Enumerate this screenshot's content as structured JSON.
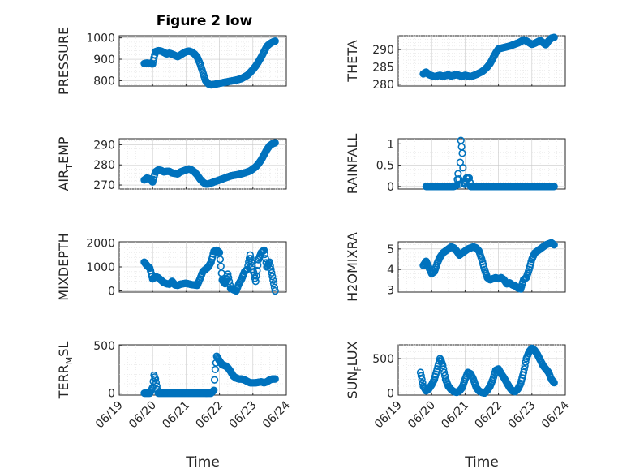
{
  "figure": {
    "title": "Figure 2 low",
    "xlabel": "Time",
    "marker_color": "#0072BD",
    "date_ticks": [
      "06/19",
      "06/20",
      "06/21",
      "06/22",
      "06/23",
      "06/24"
    ]
  },
  "chart_data": [
    {
      "type": "scatter",
      "ylabel": "PRESSURE",
      "ylim": [
        775,
        1010
      ],
      "yticks": [
        800,
        900,
        1000
      ],
      "x": [
        "06/19 18:00",
        "06/19 20:00",
        "06/19 22:00",
        "06/20 00:00",
        "06/20 02:00",
        "06/20 04:00",
        "06/20 06:00",
        "06/20 08:00",
        "06/20 10:00",
        "06/20 12:00",
        "06/20 14:00",
        "06/20 16:00",
        "06/20 18:00",
        "06/20 20:00",
        "06/20 22:00",
        "06/21 00:00",
        "06/21 02:00",
        "06/21 04:00",
        "06/21 06:00",
        "06/21 08:00",
        "06/21 10:00",
        "06/21 12:00",
        "06/21 14:00",
        "06/21 16:00",
        "06/21 18:00",
        "06/21 20:00",
        "06/21 22:00",
        "06/22 00:00",
        "06/22 02:00",
        "06/22 04:00",
        "06/22 06:00",
        "06/22 08:00",
        "06/22 10:00",
        "06/22 12:00",
        "06/22 14:00",
        "06/22 16:00",
        "06/22 18:00",
        "06/22 20:00",
        "06/22 22:00",
        "06/23 00:00",
        "06/23 02:00",
        "06/23 04:00",
        "06/23 06:00",
        "06/23 08:00",
        "06/23 10:00",
        "06/23 12:00",
        "06/23 14:00",
        "06/23 16:00"
      ],
      "values": [
        880,
        882,
        880,
        878,
        935,
        940,
        938,
        932,
        925,
        928,
        924,
        918,
        912,
        920,
        928,
        935,
        938,
        934,
        925,
        910,
        880,
        840,
        800,
        785,
        780,
        782,
        785,
        788,
        790,
        793,
        795,
        798,
        800,
        803,
        806,
        810,
        818,
        825,
        838,
        852,
        868,
        888,
        910,
        935,
        960,
        972,
        980,
        985
      ]
    },
    {
      "type": "scatter",
      "ylabel": "THETA",
      "ylim": [
        279.5,
        294
      ],
      "yticks": [
        280,
        285,
        290
      ],
      "x": [
        "06/19 18:00",
        "06/19 20:00",
        "06/19 22:00",
        "06/20 00:00",
        "06/20 02:00",
        "06/20 04:00",
        "06/20 06:00",
        "06/20 08:00",
        "06/20 10:00",
        "06/20 12:00",
        "06/20 14:00",
        "06/20 16:00",
        "06/20 18:00",
        "06/20 20:00",
        "06/20 22:00",
        "06/21 00:00",
        "06/21 02:00",
        "06/21 04:00",
        "06/21 06:00",
        "06/21 08:00",
        "06/21 10:00",
        "06/21 12:00",
        "06/21 14:00",
        "06/21 16:00",
        "06/21 18:00",
        "06/21 20:00",
        "06/21 22:00",
        "06/22 00:00",
        "06/22 02:00",
        "06/22 04:00",
        "06/22 06:00",
        "06/22 08:00",
        "06/22 10:00",
        "06/22 12:00",
        "06/22 14:00",
        "06/22 16:00",
        "06/22 18:00",
        "06/22 20:00",
        "06/22 22:00",
        "06/23 00:00",
        "06/23 02:00",
        "06/23 04:00",
        "06/23 06:00",
        "06/23 08:00",
        "06/23 10:00",
        "06/23 12:00",
        "06/23 14:00",
        "06/23 16:00"
      ],
      "values": [
        283,
        283.5,
        282.8,
        282.5,
        282.2,
        282.4,
        282.6,
        282.3,
        282.5,
        282.7,
        282.4,
        282.6,
        282.8,
        282.5,
        282.3,
        282.6,
        282.4,
        282.2,
        282.5,
        282.8,
        283.2,
        283.6,
        284.2,
        285,
        286,
        287.5,
        289,
        290.2,
        290.4,
        290.6,
        290.8,
        291,
        291.3,
        291.6,
        291.9,
        292.3,
        292.8,
        292.5,
        292,
        291.5,
        291.8,
        292.2,
        292.6,
        292,
        291.4,
        292.5,
        293.3,
        293.5
      ]
    },
    {
      "type": "scatter",
      "ylabel": "AIR_TEMP",
      "ylim": [
        268,
        293
      ],
      "yticks": [
        270,
        280,
        290
      ],
      "x": [
        "06/19 18:00",
        "06/19 20:00",
        "06/19 22:00",
        "06/20 00:00",
        "06/20 02:00",
        "06/20 04:00",
        "06/20 06:00",
        "06/20 08:00",
        "06/20 10:00",
        "06/20 12:00",
        "06/20 14:00",
        "06/20 16:00",
        "06/20 18:00",
        "06/20 20:00",
        "06/20 22:00",
        "06/21 00:00",
        "06/21 02:00",
        "06/21 04:00",
        "06/21 06:00",
        "06/21 08:00",
        "06/21 10:00",
        "06/21 12:00",
        "06/21 14:00",
        "06/21 16:00",
        "06/21 18:00",
        "06/21 20:00",
        "06/21 22:00",
        "06/22 00:00",
        "06/22 02:00",
        "06/22 04:00",
        "06/22 06:00",
        "06/22 08:00",
        "06/22 10:00",
        "06/22 12:00",
        "06/22 14:00",
        "06/22 16:00",
        "06/22 18:00",
        "06/22 20:00",
        "06/22 22:00",
        "06/23 00:00",
        "06/23 02:00",
        "06/23 04:00",
        "06/23 06:00",
        "06/23 08:00",
        "06/23 10:00",
        "06/23 12:00",
        "06/23 14:00",
        "06/23 16:00"
      ],
      "values": [
        272.5,
        273.5,
        273,
        271.5,
        276.5,
        277.5,
        277.3,
        276.5,
        276.8,
        276.8,
        276,
        275.8,
        275.5,
        276.5,
        277,
        277.5,
        278,
        277.5,
        276.5,
        275,
        273,
        271.5,
        270.5,
        270.5,
        271,
        271.5,
        272,
        272.5,
        273,
        273.5,
        274,
        274.5,
        274.8,
        275,
        275.3,
        275.6,
        276,
        276.5,
        277,
        278,
        279,
        280.5,
        282.5,
        285,
        287.5,
        289.5,
        290.5,
        291
      ]
    },
    {
      "type": "scatter",
      "ylabel": "RAINFALL",
      "ylim": [
        -0.06,
        1.12
      ],
      "yticks": [
        0,
        0.5,
        1
      ],
      "x": [
        "06/19 20:00",
        "06/20 00:00",
        "06/20 04:00",
        "06/20 08:00",
        "06/20 12:00",
        "06/20 16:00",
        "06/20 18:00",
        "06/20 19:00",
        "06/20 20:00",
        "06/20 21:00",
        "06/20 22:00",
        "06/20 23:00",
        "06/21 00:00",
        "06/21 01:00",
        "06/21 02:00",
        "06/21 03:00",
        "06/21 04:00",
        "06/21 08:00",
        "06/21 12:00",
        "06/21 16:00",
        "06/21 20:00",
        "06/22 00:00",
        "06/22 04:00",
        "06/22 08:00",
        "06/22 12:00",
        "06/22 16:00",
        "06/22 20:00",
        "06/23 00:00",
        "06/23 04:00",
        "06/23 08:00",
        "06/23 12:00",
        "06/23 16:00"
      ],
      "values": [
        0,
        0,
        0,
        0,
        0,
        0,
        0.03,
        0.3,
        0.05,
        1.08,
        0.78,
        0.1,
        0.05,
        0.2,
        0.18,
        0.2,
        0,
        0,
        0,
        0,
        0,
        0,
        0,
        0,
        0,
        0,
        0,
        0,
        0,
        0,
        0,
        0
      ]
    },
    {
      "type": "scatter",
      "ylabel": "MIXDEPTH",
      "ylim": [
        -50,
        2050
      ],
      "yticks": [
        0,
        1000,
        2000
      ],
      "x": [
        "06/19 18:00",
        "06/19 20:00",
        "06/19 22:00",
        "06/20 00:00",
        "06/20 02:00",
        "06/20 04:00",
        "06/20 06:00",
        "06/20 08:00",
        "06/20 10:00",
        "06/20 12:00",
        "06/20 14:00",
        "06/20 16:00",
        "06/20 18:00",
        "06/20 20:00",
        "06/20 22:00",
        "06/21 00:00",
        "06/21 02:00",
        "06/21 04:00",
        "06/21 06:00",
        "06/21 08:00",
        "06/21 10:00",
        "06/21 12:00",
        "06/21 14:00",
        "06/21 16:00",
        "06/21 18:00",
        "06/21 20:00",
        "06/21 22:00",
        "06/22 00:00",
        "06/22 02:00",
        "06/22 04:00",
        "06/22 06:00",
        "06/22 08:00",
        "06/22 10:00",
        "06/22 12:00",
        "06/22 14:00",
        "06/22 16:00",
        "06/22 18:00",
        "06/22 20:00",
        "06/22 22:00",
        "06/23 00:00",
        "06/23 02:00",
        "06/23 04:00",
        "06/23 06:00",
        "06/23 08:00",
        "06/23 10:00",
        "06/23 12:00",
        "06/23 14:00",
        "06/23 16:00"
      ],
      "values": [
        1200,
        1050,
        950,
        500,
        600,
        550,
        450,
        350,
        300,
        280,
        400,
        250,
        230,
        280,
        300,
        320,
        290,
        260,
        250,
        230,
        500,
        800,
        900,
        1000,
        1200,
        1650,
        1700,
        1600,
        450,
        300,
        700,
        100,
        50,
        0,
        300,
        500,
        800,
        900,
        1500,
        900,
        400,
        1300,
        1600,
        1700,
        1000,
        1200,
        600,
        0
      ]
    },
    {
      "type": "scatter",
      "ylabel": "H2OMIXRA",
      "ylim": [
        2.9,
        5.35
      ],
      "yticks": [
        3,
        4,
        5
      ],
      "x": [
        "06/19 18:00",
        "06/19 20:00",
        "06/19 22:00",
        "06/20 00:00",
        "06/20 02:00",
        "06/20 04:00",
        "06/20 06:00",
        "06/20 08:00",
        "06/20 10:00",
        "06/20 12:00",
        "06/20 14:00",
        "06/20 16:00",
        "06/20 18:00",
        "06/20 20:00",
        "06/20 22:00",
        "06/21 00:00",
        "06/21 02:00",
        "06/21 04:00",
        "06/21 06:00",
        "06/21 08:00",
        "06/21 10:00",
        "06/21 12:00",
        "06/21 14:00",
        "06/21 16:00",
        "06/21 18:00",
        "06/21 20:00",
        "06/21 22:00",
        "06/22 00:00",
        "06/22 02:00",
        "06/22 04:00",
        "06/22 06:00",
        "06/22 08:00",
        "06/22 10:00",
        "06/22 12:00",
        "06/22 14:00",
        "06/22 16:00",
        "06/22 18:00",
        "06/22 20:00",
        "06/22 22:00",
        "06/23 00:00",
        "06/23 02:00",
        "06/23 04:00",
        "06/23 06:00",
        "06/23 08:00",
        "06/23 10:00",
        "06/23 12:00",
        "06/23 14:00",
        "06/23 16:00"
      ],
      "values": [
        4.2,
        4.4,
        4.1,
        3.8,
        3.9,
        4.3,
        4.6,
        4.8,
        4.9,
        5,
        5.1,
        5.05,
        4.9,
        4.7,
        4.8,
        4.9,
        5,
        5.05,
        5.1,
        5.05,
        4.9,
        4.5,
        4,
        3.6,
        3.5,
        3.55,
        3.6,
        3.55,
        3.6,
        3.5,
        3.3,
        3.35,
        3.25,
        3.2,
        3.1,
        3.05,
        3.5,
        3.6,
        4,
        4.5,
        4.8,
        4.9,
        5,
        5.1,
        5.2,
        5.25,
        5.3,
        5.2
      ]
    },
    {
      "type": "scatter",
      "ylabel": "TERR_MSL",
      "ylim": [
        -20,
        510
      ],
      "yticks": [
        0,
        500
      ],
      "x": [
        "06/19 18:00",
        "06/19 20:00",
        "06/19 22:00",
        "06/20 00:00",
        "06/20 01:00",
        "06/20 02:00",
        "06/20 04:00",
        "06/20 08:00",
        "06/20 12:00",
        "06/20 16:00",
        "06/20 20:00",
        "06/21 00:00",
        "06/21 04:00",
        "06/21 08:00",
        "06/21 12:00",
        "06/21 16:00",
        "06/21 18:00",
        "06/21 20:00",
        "06/21 21:00",
        "06/21 22:00",
        "06/22 00:00",
        "06/22 02:00",
        "06/22 04:00",
        "06/22 06:00",
        "06/22 08:00",
        "06/22 10:00",
        "06/22 12:00",
        "06/22 14:00",
        "06/22 16:00",
        "06/22 18:00",
        "06/22 20:00",
        "06/22 22:00",
        "06/23 00:00",
        "06/23 02:00",
        "06/23 04:00",
        "06/23 06:00",
        "06/23 08:00",
        "06/23 10:00",
        "06/23 12:00",
        "06/23 14:00",
        "06/23 16:00"
      ],
      "values": [
        0,
        0,
        0,
        60,
        190,
        150,
        0,
        0,
        0,
        0,
        0,
        0,
        0,
        0,
        0,
        0,
        0,
        30,
        250,
        390,
        340,
        300,
        290,
        270,
        230,
        180,
        160,
        150,
        150,
        140,
        125,
        110,
        110,
        110,
        115,
        120,
        110,
        120,
        140,
        150,
        150
      ]
    },
    {
      "type": "scatter",
      "ylabel": "SUN_FLUX",
      "ylim": [
        -30,
        700
      ],
      "yticks": [
        0,
        500
      ],
      "x": [
        "06/19 16:00",
        "06/19 17:00",
        "06/19 18:00",
        "06/19 20:00",
        "06/19 22:00",
        "06/20 00:00",
        "06/20 02:00",
        "06/20 04:00",
        "06/20 06:00",
        "06/20 07:00",
        "06/20 08:00",
        "06/20 09:00",
        "06/20 10:00",
        "06/20 12:00",
        "06/20 14:00",
        "06/20 16:00",
        "06/20 18:00",
        "06/20 20:00",
        "06/20 22:00",
        "06/21 00:00",
        "06/21 02:00",
        "06/21 04:00",
        "06/21 06:00",
        "06/21 08:00",
        "06/21 10:00",
        "06/21 12:00",
        "06/21 14:00",
        "06/21 16:00",
        "06/21 18:00",
        "06/21 20:00",
        "06/21 22:00",
        "06/22 00:00",
        "06/22 02:00",
        "06/22 04:00",
        "06/22 06:00",
        "06/22 08:00",
        "06/22 10:00",
        "06/22 12:00",
        "06/22 14:00",
        "06/22 16:00",
        "06/22 18:00",
        "06/22 20:00",
        "06/22 22:00",
        "06/23 00:00",
        "06/23 02:00",
        "06/23 04:00",
        "06/23 06:00",
        "06/23 08:00",
        "06/23 10:00",
        "06/23 12:00",
        "06/23 14:00",
        "06/23 16:00"
      ],
      "values": [
        300,
        200,
        100,
        30,
        60,
        120,
        200,
        350,
        500,
        460,
        400,
        300,
        200,
        100,
        50,
        20,
        10,
        30,
        80,
        200,
        300,
        280,
        200,
        80,
        30,
        10,
        0,
        40,
        100,
        200,
        330,
        350,
        280,
        220,
        150,
        80,
        30,
        20,
        60,
        140,
        300,
        500,
        600,
        650,
        620,
        560,
        480,
        400,
        350,
        300,
        200,
        150
      ]
    }
  ]
}
